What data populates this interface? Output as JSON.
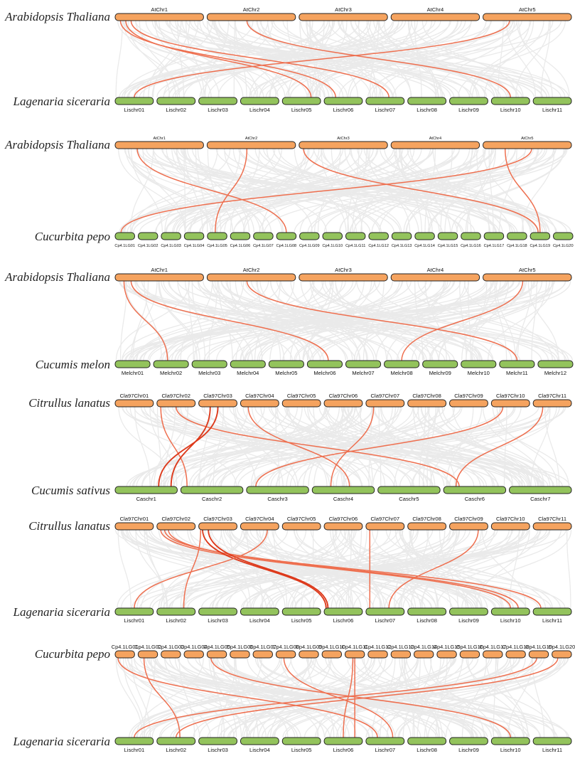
{
  "colors": {
    "top": "#f5a35f",
    "bottom": "#93c35c",
    "link": "#ee6f4f",
    "link_strong": "#dd3a1c",
    "background_link": "#d9d9d9",
    "outline": "#222222"
  },
  "panels": [
    {
      "name": "panel-at-ls",
      "top_species": "Arabidopsis Thaliana",
      "bottom_species": "Lagenaria siceraria",
      "top_chrs": [
        "AtChr1",
        "AtChr2",
        "AtChr3",
        "AtChr4",
        "AtChr5"
      ],
      "bottom_chrs": [
        "Lischr01",
        "Lischr02",
        "Lischr03",
        "Lischr04",
        "Lischr05",
        "Lischr06",
        "Lischr07",
        "Lischr08",
        "Lischr09",
        "Lischr10",
        "Lischr11"
      ],
      "links": [
        [
          0,
          0.06,
          5,
          0.3
        ],
        [
          0,
          0.12,
          4,
          0.75
        ],
        [
          0,
          0.18,
          6,
          0.6
        ],
        [
          1,
          0.45,
          9,
          0.5
        ],
        [
          4,
          0.3,
          0,
          0.5
        ]
      ],
      "strong": []
    },
    {
      "name": "panel-at-cp",
      "top_species": "Arabidopsis Thaliana",
      "bottom_species": "Cucurbita pepo",
      "top_chrs": [
        "AtChr1",
        "AtChr2",
        "AtChr3",
        "AtChr4",
        "AtChr5"
      ],
      "bottom_chrs": [
        "Cp4.1LG01",
        "Cp4.1LG02",
        "Cp4.1LG03",
        "Cp4.1LG04",
        "Cp4.1LG05",
        "Cp4.1LG06",
        "Cp4.1LG07",
        "Cp4.1LG08",
        "Cp4.1LG09",
        "Cp4.1LG10",
        "Cp4.1LG11",
        "Cp4.1LG12",
        "Cp4.1LG13",
        "Cp4.1LG14",
        "Cp4.1LG15",
        "Cp4.1LG16",
        "Cp4.1LG17",
        "Cp4.1LG18",
        "Cp4.1LG19",
        "Cp4.1LG20"
      ],
      "links": [
        [
          0,
          0.25,
          7,
          0.5
        ],
        [
          1,
          0.45,
          4,
          0.4
        ],
        [
          2,
          0.05,
          18,
          0.4
        ],
        [
          4,
          0.25,
          18,
          0.5
        ],
        [
          4,
          0.55,
          0,
          0.3
        ]
      ],
      "strong": []
    },
    {
      "name": "panel-at-cm",
      "top_species": "Arabidopsis Thaliana",
      "bottom_species": "Cucumis melon",
      "top_chrs": [
        "AtChr1",
        "AtChr2",
        "AtChr3",
        "AtChr4",
        "AtChr5"
      ],
      "bottom_chrs": [
        "Melchr01",
        "Melchr02",
        "Melchr03",
        "Melchr04",
        "Melchr05",
        "Melchr06",
        "Melchr07",
        "Melchr08",
        "Melchr09",
        "Melchr10",
        "Melchr11",
        "Melchr12"
      ],
      "links": [
        [
          0,
          0.1,
          1,
          0.4
        ],
        [
          0,
          0.18,
          5,
          0.6
        ],
        [
          1,
          0.45,
          10,
          0.5
        ],
        [
          4,
          0.45,
          7,
          0.5
        ]
      ],
      "strong": []
    },
    {
      "name": "panel-cl-cs",
      "top_species": "Citrullus lanatus",
      "bottom_species": "Cucumis sativus",
      "top_chrs": [
        "Cla97Chr01",
        "Cla97Chr02",
        "Cla97Chr03",
        "Cla97Chr04",
        "Cla97Chr05",
        "Cla97Chr06",
        "Cla97Chr07",
        "Cla97Chr08",
        "Cla97Chr09",
        "Cla97Chr10",
        "Cla97Chr11"
      ],
      "bottom_chrs": [
        "Caschr1",
        "Caschr2",
        "Caschr3",
        "Caschr4",
        "Caschr5",
        "Caschr6",
        "Caschr7"
      ],
      "links": [
        [
          1,
          0.1,
          1,
          0.1
        ],
        [
          1,
          0.5,
          5,
          0.25
        ],
        [
          2,
          0.5,
          0,
          0.7
        ],
        [
          2,
          0.3,
          0,
          0.9
        ],
        [
          3,
          0.2,
          3,
          0.6
        ],
        [
          6,
          0.2,
          3,
          0.3
        ],
        [
          9,
          0.3,
          2,
          0.15
        ],
        [
          10,
          0.25,
          5,
          0.2
        ]
      ],
      "strong": [
        2,
        3
      ]
    },
    {
      "name": "panel-cl-ls",
      "top_species": "Citrullus lanatus",
      "bottom_species": "Lagenaria siceraria",
      "top_chrs": [
        "Cla97Chr01",
        "Cla97Chr02",
        "Cla97Chr03",
        "Cla97Chr04",
        "Cla97Chr05",
        "Cla97Chr06",
        "Cla97Chr07",
        "Cla97Chr08",
        "Cla97Chr09",
        "Cla97Chr10",
        "Cla97Chr11"
      ],
      "bottom_chrs": [
        "Lischr01",
        "Lischr02",
        "Lischr03",
        "Lischr04",
        "Lischr05",
        "Lischr06",
        "Lischr07",
        "Lischr08",
        "Lischr09",
        "Lischr10",
        "Lischr11"
      ],
      "links": [
        [
          1,
          0.1,
          9,
          0.5
        ],
        [
          1,
          0.2,
          10,
          0.2
        ],
        [
          1,
          0.3,
          9,
          0.7
        ],
        [
          2,
          0.1,
          5,
          0.05
        ],
        [
          2,
          0.25,
          5,
          0.1
        ],
        [
          2,
          0.05,
          1,
          0.7
        ],
        [
          3,
          0.7,
          0,
          0.5
        ],
        [
          6,
          0.1,
          6,
          0.1
        ],
        [
          8,
          0.75,
          6,
          0.6
        ]
      ],
      "strong": [
        3,
        4
      ]
    },
    {
      "name": "panel-cp-ls",
      "top_species": "Cucurbita pepo",
      "bottom_species": "Lagenaria siceraria",
      "top_chrs": [
        "Cp4.1LG01",
        "Cp4.1LG02",
        "Cp4.1LG03",
        "Cp4.1LG04",
        "Cp4.1LG05",
        "Cp4.1LG06",
        "Cp4.1LG07",
        "Cp4.1LG08",
        "Cp4.1LG09",
        "Cp4.1LG10",
        "Cp4.1LG11",
        "Cp4.1LG12",
        "Cp4.1LG13",
        "Cp4.1LG14",
        "Cp4.1LG15",
        "Cp4.1LG16",
        "Cp4.1LG17",
        "Cp4.1LG18",
        "Cp4.1LG19",
        "Cp4.1LG20"
      ],
      "bottom_chrs": [
        "Lischr01",
        "Lischr02",
        "Lischr03",
        "Lischr04",
        "Lischr05",
        "Lischr06",
        "Lischr07",
        "Lischr08",
        "Lischr09",
        "Lischr10",
        "Lischr11"
      ],
      "links": [
        [
          0,
          0.15,
          6,
          0.3
        ],
        [
          1,
          0.3,
          1,
          0.6
        ],
        [
          4,
          0.2,
          9,
          0.5
        ],
        [
          7,
          0.4,
          6,
          0.7
        ],
        [
          10,
          0.4,
          5,
          0.5
        ],
        [
          10,
          0.5,
          5,
          0.8
        ],
        [
          18,
          0.4,
          0,
          0.5
        ],
        [
          19,
          0.3,
          1,
          0.5
        ]
      ],
      "strong": []
    }
  ]
}
